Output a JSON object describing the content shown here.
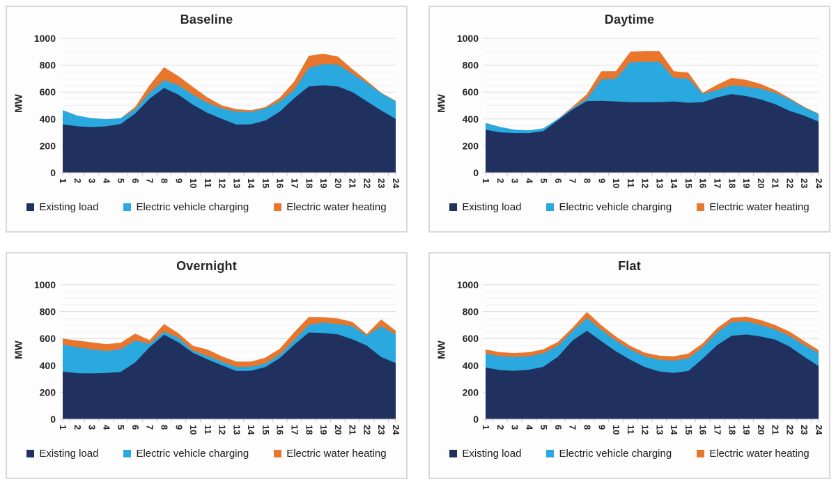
{
  "axis": {
    "y_title": "MW",
    "y_ticks": [
      0,
      200,
      400,
      600,
      800,
      1000
    ],
    "ylim": [
      0,
      1000
    ],
    "minor_grid_step": 50,
    "major_grid_step": 200,
    "grid_major_color": "#D9D9D9",
    "grid_minor_color": "#F2F2F2",
    "axis_line_color": "#BFBFBF",
    "tick_label_color": "#262626"
  },
  "legend": {
    "position": "bottom",
    "items": [
      {
        "label": "Existing load",
        "color": "#20315F"
      },
      {
        "label": "Electric vehicle charging",
        "color": "#29A9E0"
      },
      {
        "label": "Electric water heating",
        "color": "#E8762C"
      }
    ]
  },
  "chart_data": [
    {
      "type": "area",
      "stacked": true,
      "title": "Baseline",
      "xlabel": "",
      "ylabel": "MW",
      "ylim": [
        0,
        1000
      ],
      "x": [
        1,
        2,
        3,
        4,
        5,
        6,
        7,
        8,
        9,
        10,
        11,
        12,
        13,
        14,
        15,
        16,
        17,
        18,
        19,
        20,
        21,
        22,
        23,
        24
      ],
      "series": [
        {
          "name": "Existing load",
          "color": "#20315F",
          "values": [
            360,
            345,
            340,
            345,
            362,
            440,
            550,
            630,
            580,
            505,
            445,
            400,
            358,
            360,
            388,
            455,
            555,
            642,
            651,
            642,
            600,
            531,
            463,
            400
          ]
        },
        {
          "name": "Electric vehicle charging",
          "color": "#29A9E0",
          "values": [
            105,
            80,
            65,
            53,
            43,
            30,
            45,
            58,
            70,
            75,
            75,
            78,
            97,
            92,
            90,
            75,
            63,
            138,
            157,
            163,
            137,
            137,
            128,
            131
          ]
        },
        {
          "name": "Electric water heating",
          "color": "#E8762C",
          "values": [
            0,
            0,
            0,
            0,
            0,
            18,
            55,
            97,
            68,
            58,
            40,
            22,
            18,
            13,
            10,
            28,
            62,
            90,
            77,
            60,
            34,
            17,
            4,
            4
          ]
        }
      ]
    },
    {
      "type": "area",
      "stacked": true,
      "title": "Daytime",
      "xlabel": "",
      "ylabel": "MW",
      "ylim": [
        0,
        1000
      ],
      "x": [
        1,
        2,
        3,
        4,
        5,
        6,
        7,
        8,
        9,
        10,
        11,
        12,
        13,
        14,
        15,
        16,
        17,
        18,
        19,
        20,
        21,
        22,
        23,
        24
      ],
      "series": [
        {
          "name": "Existing load",
          "color": "#20315F",
          "values": [
            320,
            300,
            295,
            295,
            310,
            390,
            470,
            533,
            535,
            530,
            525,
            525,
            525,
            530,
            520,
            525,
            560,
            585,
            570,
            545,
            510,
            460,
            425,
            380
          ]
        },
        {
          "name": "Electric vehicle charging",
          "color": "#29A9E0",
          "values": [
            50,
            40,
            25,
            20,
            20,
            10,
            10,
            17,
            160,
            170,
            297,
            300,
            300,
            175,
            180,
            60,
            55,
            65,
            70,
            80,
            85,
            85,
            60,
            55
          ]
        },
        {
          "name": "Electric water heating",
          "color": "#E8762C",
          "values": [
            0,
            0,
            0,
            0,
            0,
            0,
            10,
            35,
            60,
            55,
            78,
            80,
            80,
            50,
            45,
            10,
            40,
            55,
            50,
            35,
            20,
            10,
            5,
            5
          ]
        }
      ]
    },
    {
      "type": "area",
      "stacked": true,
      "title": "Overnight",
      "xlabel": "",
      "ylabel": "MW",
      "ylim": [
        0,
        1000
      ],
      "x": [
        1,
        2,
        3,
        4,
        5,
        6,
        7,
        8,
        9,
        10,
        11,
        12,
        13,
        14,
        15,
        16,
        17,
        18,
        19,
        20,
        21,
        22,
        23,
        24
      ],
      "series": [
        {
          "name": "Existing load",
          "color": "#20315F",
          "values": [
            355,
            342,
            340,
            344,
            352,
            422,
            535,
            628,
            571,
            494,
            445,
            400,
            358,
            360,
            388,
            455,
            555,
            645,
            641,
            631,
            595,
            548,
            462,
            417
          ]
        },
        {
          "name": "Electric vehicle charging",
          "color": "#29A9E0",
          "values": [
            200,
            193,
            180,
            163,
            168,
            163,
            25,
            24,
            34,
            16,
            25,
            28,
            30,
            30,
            27,
            27,
            35,
            57,
            77,
            77,
            97,
            74,
            229,
            214
          ]
        },
        {
          "name": "Electric water heating",
          "color": "#E8762C",
          "values": [
            45,
            50,
            52,
            51,
            48,
            52,
            28,
            56,
            34,
            35,
            48,
            40,
            40,
            38,
            43,
            43,
            58,
            58,
            41,
            41,
            32,
            12,
            51,
            27
          ]
        }
      ]
    },
    {
      "type": "area",
      "stacked": true,
      "title": "Flat",
      "xlabel": "",
      "ylabel": "MW",
      "ylim": [
        0,
        1000
      ],
      "x": [
        1,
        2,
        3,
        4,
        5,
        6,
        7,
        8,
        9,
        10,
        11,
        12,
        13,
        14,
        15,
        16,
        17,
        18,
        19,
        20,
        21,
        22,
        23,
        24
      ],
      "series": [
        {
          "name": "Existing load",
          "color": "#20315F",
          "values": [
            385,
            365,
            360,
            368,
            390,
            465,
            585,
            658,
            580,
            505,
            442,
            388,
            355,
            345,
            358,
            450,
            552,
            620,
            630,
            615,
            592,
            540,
            465,
            395
          ]
        },
        {
          "name": "Electric vehicle charging",
          "color": "#29A9E0",
          "values": [
            103,
            103,
            102,
            100,
            100,
            80,
            70,
            94,
            85,
            80,
            76,
            80,
            87,
            90,
            94,
            85,
            93,
            102,
            98,
            85,
            76,
            78,
            87,
            97
          ]
        },
        {
          "name": "Electric water heating",
          "color": "#E8762C",
          "values": [
            30,
            30,
            30,
            30,
            30,
            30,
            25,
            46,
            33,
            30,
            27,
            27,
            30,
            33,
            36,
            30,
            33,
            33,
            34,
            38,
            32,
            34,
            30,
            23
          ]
        }
      ]
    }
  ]
}
